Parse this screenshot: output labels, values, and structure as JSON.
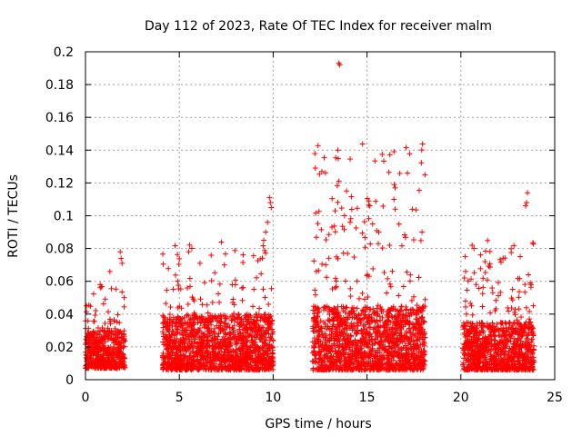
{
  "chart_data": {
    "type": "scatter",
    "title": "Day 112 of 2023, Rate Of TEC Index for receiver malm",
    "xlabel": "GPS time / hours",
    "ylabel": "ROTI / TECUs",
    "xlim": [
      0,
      25
    ],
    "ylim": [
      0,
      0.2
    ],
    "x_ticks": [
      0,
      5,
      10,
      15,
      20,
      25
    ],
    "y_ticks": [
      0,
      0.02,
      0.04,
      0.06,
      0.08,
      0.1,
      0.12,
      0.14,
      0.16,
      0.18,
      0.2
    ],
    "grid": true,
    "marker": "+",
    "color": "#ff0000",
    "data_segments": [
      {
        "x_start": 0.0,
        "x_end": 2.1,
        "typical_min": 0.007,
        "typical_max": 0.03,
        "peak_max": 0.078
      },
      {
        "x_start": 4.1,
        "x_end": 10.0,
        "typical_min": 0.006,
        "typical_max": 0.04,
        "peak_max": 0.112
      },
      {
        "x_start": 12.1,
        "x_end": 18.1,
        "typical_min": 0.006,
        "typical_max": 0.045,
        "peak_max": 0.193
      },
      {
        "x_start": 20.1,
        "x_end": 23.9,
        "typical_min": 0.006,
        "typical_max": 0.035,
        "peak_max": 0.114
      }
    ],
    "notable_points": [
      {
        "x": 13.5,
        "y": 0.193
      },
      {
        "x": 13.55,
        "y": 0.192
      },
      {
        "x": 13.45,
        "y": 0.14
      },
      {
        "x": 13.5,
        "y": 0.121
      },
      {
        "x": 16.45,
        "y": 0.119
      },
      {
        "x": 16.5,
        "y": 0.117
      },
      {
        "x": 16.5,
        "y": 0.104
      },
      {
        "x": 9.8,
        "y": 0.111
      },
      {
        "x": 9.85,
        "y": 0.108
      },
      {
        "x": 9.9,
        "y": 0.105
      },
      {
        "x": 15.1,
        "y": 0.109
      },
      {
        "x": 15.15,
        "y": 0.106
      },
      {
        "x": 23.55,
        "y": 0.114
      },
      {
        "x": 23.5,
        "y": 0.108
      },
      {
        "x": 23.45,
        "y": 0.106
      },
      {
        "x": 0.05,
        "y": 0.045
      },
      {
        "x": 1.85,
        "y": 0.078
      },
      {
        "x": 1.9,
        "y": 0.074
      },
      {
        "x": 1.95,
        "y": 0.071
      },
      {
        "x": 1.3,
        "y": 0.066
      },
      {
        "x": 5.5,
        "y": 0.078
      },
      {
        "x": 6.1,
        "y": 0.071
      },
      {
        "x": 7.4,
        "y": 0.07
      },
      {
        "x": 9.7,
        "y": 0.096
      },
      {
        "x": 9.6,
        "y": 0.09
      },
      {
        "x": 9.5,
        "y": 0.085
      },
      {
        "x": 13.3,
        "y": 0.103
      },
      {
        "x": 13.8,
        "y": 0.1
      },
      {
        "x": 14.1,
        "y": 0.096
      },
      {
        "x": 15.3,
        "y": 0.095
      },
      {
        "x": 15.6,
        "y": 0.083
      },
      {
        "x": 16.2,
        "y": 0.082
      },
      {
        "x": 20.6,
        "y": 0.082
      },
      {
        "x": 20.7,
        "y": 0.08
      },
      {
        "x": 23.6,
        "y": 0.064
      },
      {
        "x": 23.7,
        "y": 0.059
      },
      {
        "x": 12.3,
        "y": 0.066
      },
      {
        "x": 12.8,
        "y": 0.07
      }
    ]
  }
}
